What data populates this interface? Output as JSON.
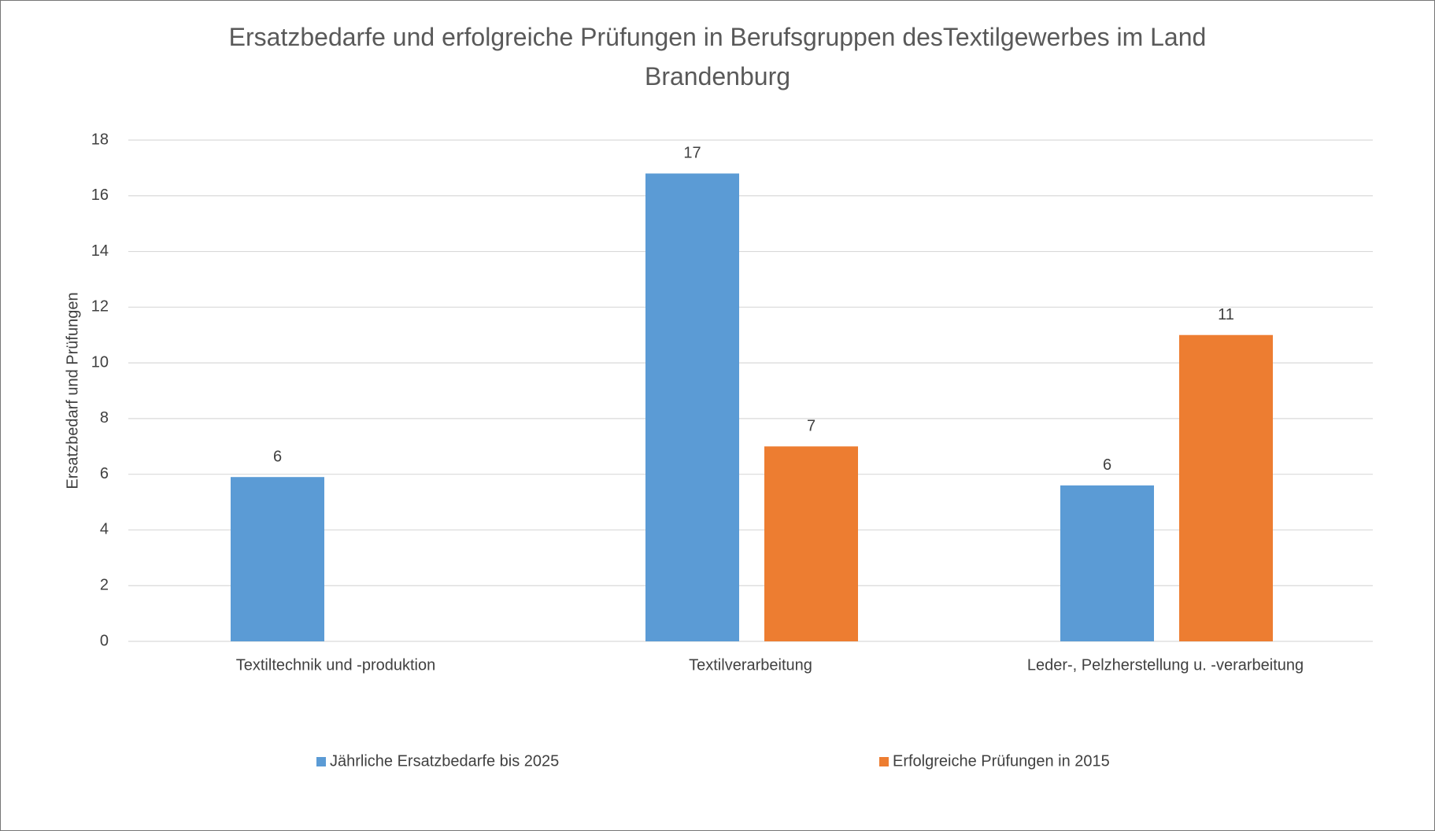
{
  "chart_data": {
    "type": "bar",
    "title": "Ersatzbedarfe und erfolgreiche Prüfungen in Berufsgruppen desTextilgewerbes im Land Brandenburg",
    "y_label": "Ersatzbedarf und Prüfungen",
    "categories": [
      "Textiltechnik und -produktion",
      "Textilverarbeitung",
      "Leder-, Pelzherstellung u. -verarbeitung"
    ],
    "series": [
      {
        "name": "Jährliche Ersatzbedarfe bis 2025",
        "color": "#5b9bd5",
        "values": [
          5.9,
          16.8,
          5.6
        ],
        "value_labels": [
          "6",
          "17",
          "6"
        ]
      },
      {
        "name": "Erfolgreiche Prüfungen in 2015",
        "color": "#ed7d31",
        "values": [
          null,
          7,
          11
        ],
        "value_labels": [
          null,
          "7",
          "11"
        ]
      }
    ],
    "ylim": [
      0,
      18
    ],
    "yticks": [
      0,
      2,
      4,
      6,
      8,
      10,
      12,
      14,
      16,
      18
    ],
    "grid": true,
    "legend": "bottom"
  }
}
